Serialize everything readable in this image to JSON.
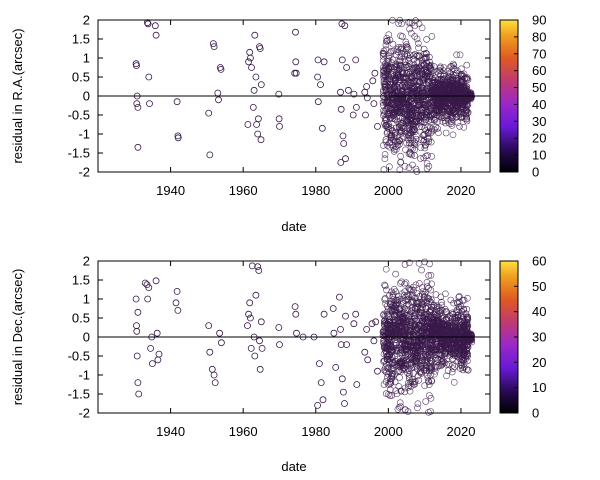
{
  "chart_data": [
    {
      "type": "scatter",
      "title": "",
      "xlabel": "date",
      "ylabel": "residual in R.A.(arcsec)",
      "xlim": [
        1920,
        2028
      ],
      "ylim": [
        -2,
        2
      ],
      "xticks": [
        1940,
        1960,
        1980,
        2000,
        2020
      ],
      "yticks": [
        -2,
        -1.5,
        -1,
        -0.5,
        0,
        0.5,
        1,
        1.5,
        2
      ],
      "reference_line_y": 0,
      "colorbar": {
        "min": 0,
        "max": 90,
        "ticks": [
          0,
          10,
          20,
          30,
          40,
          50,
          60,
          70,
          80,
          90
        ]
      },
      "marker": "open-circle",
      "marker_color": "#3a1a4a",
      "early_points": [
        [
          1930.5,
          0.85
        ],
        [
          1930.6,
          0.8
        ],
        [
          1930.7,
          -0.2
        ],
        [
          1930.8,
          0.0
        ],
        [
          1931.0,
          -1.35
        ],
        [
          1931.0,
          -0.3
        ],
        [
          1933.6,
          1.93
        ],
        [
          1933.8,
          1.9
        ],
        [
          1934.0,
          0.5
        ],
        [
          1934.2,
          -0.2
        ],
        [
          1935.8,
          1.85
        ],
        [
          1936.0,
          1.6
        ],
        [
          1941.8,
          -0.15
        ],
        [
          1942.0,
          -1.05
        ],
        [
          1942.1,
          -1.1
        ],
        [
          1950.5,
          -0.45
        ],
        [
          1950.8,
          -1.55
        ],
        [
          1951.8,
          1.38
        ],
        [
          1952.0,
          1.3
        ],
        [
          1953.0,
          0.08
        ],
        [
          1953.2,
          -0.1
        ],
        [
          1953.7,
          0.75
        ],
        [
          1953.9,
          0.7
        ],
        [
          1961.3,
          -0.75
        ],
        [
          1961.5,
          0.9
        ],
        [
          1961.8,
          1.15
        ],
        [
          1962.0,
          1.0
        ],
        [
          1962.3,
          0.75
        ],
        [
          1962.8,
          -0.3
        ],
        [
          1963.0,
          0.15
        ],
        [
          1963.2,
          1.6
        ],
        [
          1963.5,
          0.5
        ],
        [
          1963.7,
          -0.75
        ],
        [
          1964.0,
          -1.0
        ],
        [
          1964.2,
          -0.6
        ],
        [
          1964.5,
          1.3
        ],
        [
          1964.7,
          1.25
        ],
        [
          1964.9,
          -1.15
        ],
        [
          1965.0,
          0.3
        ],
        [
          1969.8,
          0.05
        ],
        [
          1969.9,
          -0.6
        ],
        [
          1970.0,
          -0.8
        ],
        [
          1974.2,
          0.6
        ],
        [
          1974.4,
          1.68
        ],
        [
          1974.5,
          0.9
        ],
        [
          1974.6,
          0.6
        ],
        [
          1980.5,
          0.5
        ],
        [
          1980.6,
          0.95
        ],
        [
          1980.7,
          -0.15
        ],
        [
          1981.3,
          0.3
        ],
        [
          1981.8,
          -0.85
        ],
        [
          1982.3,
          0.9
        ],
        [
          1986.8,
          0.1
        ],
        [
          1986.9,
          -1.75
        ],
        [
          1987.0,
          -0.35
        ],
        [
          1987.2,
          1.9
        ],
        [
          1987.3,
          0.95
        ],
        [
          1987.5,
          -1.05
        ],
        [
          1987.7,
          -1.25
        ],
        [
          1988.0,
          1.85
        ],
        [
          1988.2,
          -1.65
        ],
        [
          1988.5,
          0.75
        ],
        [
          1989.0,
          0.15
        ],
        [
          1990.3,
          -0.5
        ],
        [
          1990.5,
          0.05
        ],
        [
          1991.0,
          0.95
        ],
        [
          1991.2,
          -0.3
        ],
        [
          1993.5,
          0.1
        ],
        [
          1993.7,
          -0.5
        ],
        [
          1994.0,
          0.25
        ],
        [
          1994.2,
          -0.05
        ],
        [
          1995.7,
          0.4
        ],
        [
          1996.0,
          -0.2
        ],
        [
          1996.3,
          0.6
        ],
        [
          1997.0,
          -0.8
        ]
      ],
      "dense_clusters": [
        {
          "x": [
            1998.5,
            2012
          ],
          "sd": 0.75,
          "count": 900
        },
        {
          "x": [
            2012,
            2022
          ],
          "sd": 0.35,
          "count": 650
        },
        {
          "x": [
            2021,
            2023
          ],
          "sd": 0.05,
          "count": 80
        }
      ]
    },
    {
      "type": "scatter",
      "title": "",
      "xlabel": "date",
      "ylabel": "residual in Dec.(arcsec)",
      "xlim": [
        1920,
        2028
      ],
      "ylim": [
        -2,
        2
      ],
      "xticks": [
        1940,
        1960,
        1980,
        2000,
        2020
      ],
      "yticks": [
        -2,
        -1.5,
        -1,
        -0.5,
        0,
        0.5,
        1,
        1.5,
        2
      ],
      "reference_line_y": 0,
      "colorbar": {
        "min": 0,
        "max": 60,
        "ticks": [
          0,
          10,
          20,
          30,
          40,
          50,
          60
        ]
      },
      "marker": "open-circle",
      "marker_color": "#3a1a4a",
      "early_points": [
        [
          1930.5,
          1.0
        ],
        [
          1930.6,
          0.3
        ],
        [
          1930.7,
          0.15
        ],
        [
          1930.8,
          -0.5
        ],
        [
          1931.0,
          -1.2
        ],
        [
          1931.2,
          -1.5
        ],
        [
          1931.0,
          0.65
        ],
        [
          1933.0,
          1.42
        ],
        [
          1933.5,
          1.38
        ],
        [
          1933.7,
          1.0
        ],
        [
          1934.0,
          1.3
        ],
        [
          1934.5,
          -0.3
        ],
        [
          1934.8,
          0.0
        ],
        [
          1935.0,
          -0.7
        ],
        [
          1936.0,
          1.48
        ],
        [
          1936.3,
          0.1
        ],
        [
          1936.5,
          -0.6
        ],
        [
          1936.8,
          -0.45
        ],
        [
          1941.5,
          0.9
        ],
        [
          1941.8,
          1.2
        ],
        [
          1942.0,
          0.7
        ],
        [
          1950.5,
          0.3
        ],
        [
          1950.8,
          -0.4
        ],
        [
          1951.5,
          -0.85
        ],
        [
          1952.0,
          -1.0
        ],
        [
          1952.3,
          -1.2
        ],
        [
          1953.5,
          0.1
        ],
        [
          1954.0,
          -0.15
        ],
        [
          1961.2,
          0.3
        ],
        [
          1961.5,
          0.6
        ],
        [
          1961.8,
          0.9
        ],
        [
          1962.0,
          0.5
        ],
        [
          1962.2,
          -0.3
        ],
        [
          1962.5,
          1.87
        ],
        [
          1963.0,
          0.0
        ],
        [
          1963.2,
          -0.5
        ],
        [
          1963.5,
          1.1
        ],
        [
          1964.0,
          1.85
        ],
        [
          1964.3,
          1.75
        ],
        [
          1964.5,
          -0.1
        ],
        [
          1964.7,
          -0.85
        ],
        [
          1965.0,
          0.4
        ],
        [
          1965.2,
          -0.3
        ],
        [
          1969.8,
          0.25
        ],
        [
          1970.0,
          -0.2
        ],
        [
          1974.3,
          0.8
        ],
        [
          1974.5,
          0.6
        ],
        [
          1974.7,
          0.1
        ],
        [
          1976.5,
          0.0
        ],
        [
          1979.5,
          0.0
        ],
        [
          1980.5,
          -1.8
        ],
        [
          1981.0,
          -0.7
        ],
        [
          1981.5,
          -1.2
        ],
        [
          1982.0,
          -1.65
        ],
        [
          1982.3,
          0.6
        ],
        [
          1984.8,
          0.75
        ],
        [
          1985.0,
          0.1
        ],
        [
          1985.5,
          -0.8
        ],
        [
          1986.5,
          1.05
        ],
        [
          1986.8,
          0.2
        ],
        [
          1987.0,
          -0.2
        ],
        [
          1987.3,
          -1.1
        ],
        [
          1987.6,
          -1.45
        ],
        [
          1987.9,
          -1.75
        ],
        [
          1988.2,
          0.55
        ],
        [
          1988.5,
          -0.2
        ],
        [
          1990.5,
          0.35
        ],
        [
          1991.0,
          0.6
        ],
        [
          1991.3,
          -1.25
        ],
        [
          1993.5,
          -0.4
        ],
        [
          1994.0,
          0.2
        ],
        [
          1994.3,
          -0.6
        ],
        [
          1995.5,
          0.35
        ],
        [
          1996.0,
          -0.1
        ],
        [
          1996.5,
          0.4
        ],
        [
          1997.0,
          -0.9
        ]
      ],
      "dense_clusters": [
        {
          "x": [
            1998.5,
            2012
          ],
          "sd": 0.7,
          "count": 900
        },
        {
          "x": [
            2012,
            2022
          ],
          "sd": 0.4,
          "count": 650
        },
        {
          "x": [
            2021,
            2023
          ],
          "sd": 0.05,
          "count": 80
        }
      ]
    }
  ]
}
